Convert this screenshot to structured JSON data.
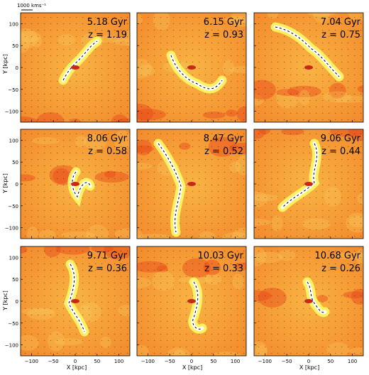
{
  "figure": {
    "scale_label": "1000 kms⁻¹",
    "x_axis_label": "X [kpc]",
    "y_axis_label": "Y [kpc]",
    "x_ticks": [
      "−100",
      "−50",
      "0",
      "50",
      "100"
    ],
    "y_ticks": [
      "100",
      "50",
      "0",
      "−50",
      "−100"
    ]
  },
  "panels": [
    {
      "time": "5.18 Gyr",
      "redshift": "z = 1.19"
    },
    {
      "time": "6.15 Gyr",
      "redshift": "z = 0.93"
    },
    {
      "time": "7.04 Gyr",
      "redshift": "z = 0.75"
    },
    {
      "time": "8.06 Gyr",
      "redshift": "z = 0.58"
    },
    {
      "time": "8.47 Gyr",
      "redshift": "z = 0.52"
    },
    {
      "time": "9.06 Gyr",
      "redshift": "z = 0.44"
    },
    {
      "time": "9.71 Gyr",
      "redshift": "z = 0.36"
    },
    {
      "time": "10.03 Gyr",
      "redshift": "z = 0.33"
    },
    {
      "time": "10.68 Gyr",
      "redshift": "z = 0.26"
    }
  ],
  "colors": {
    "background": "#f7a23a",
    "hot": "#e8471a",
    "filament": "#ffff66",
    "core": "#ffffff",
    "arrow": "#000000"
  }
}
